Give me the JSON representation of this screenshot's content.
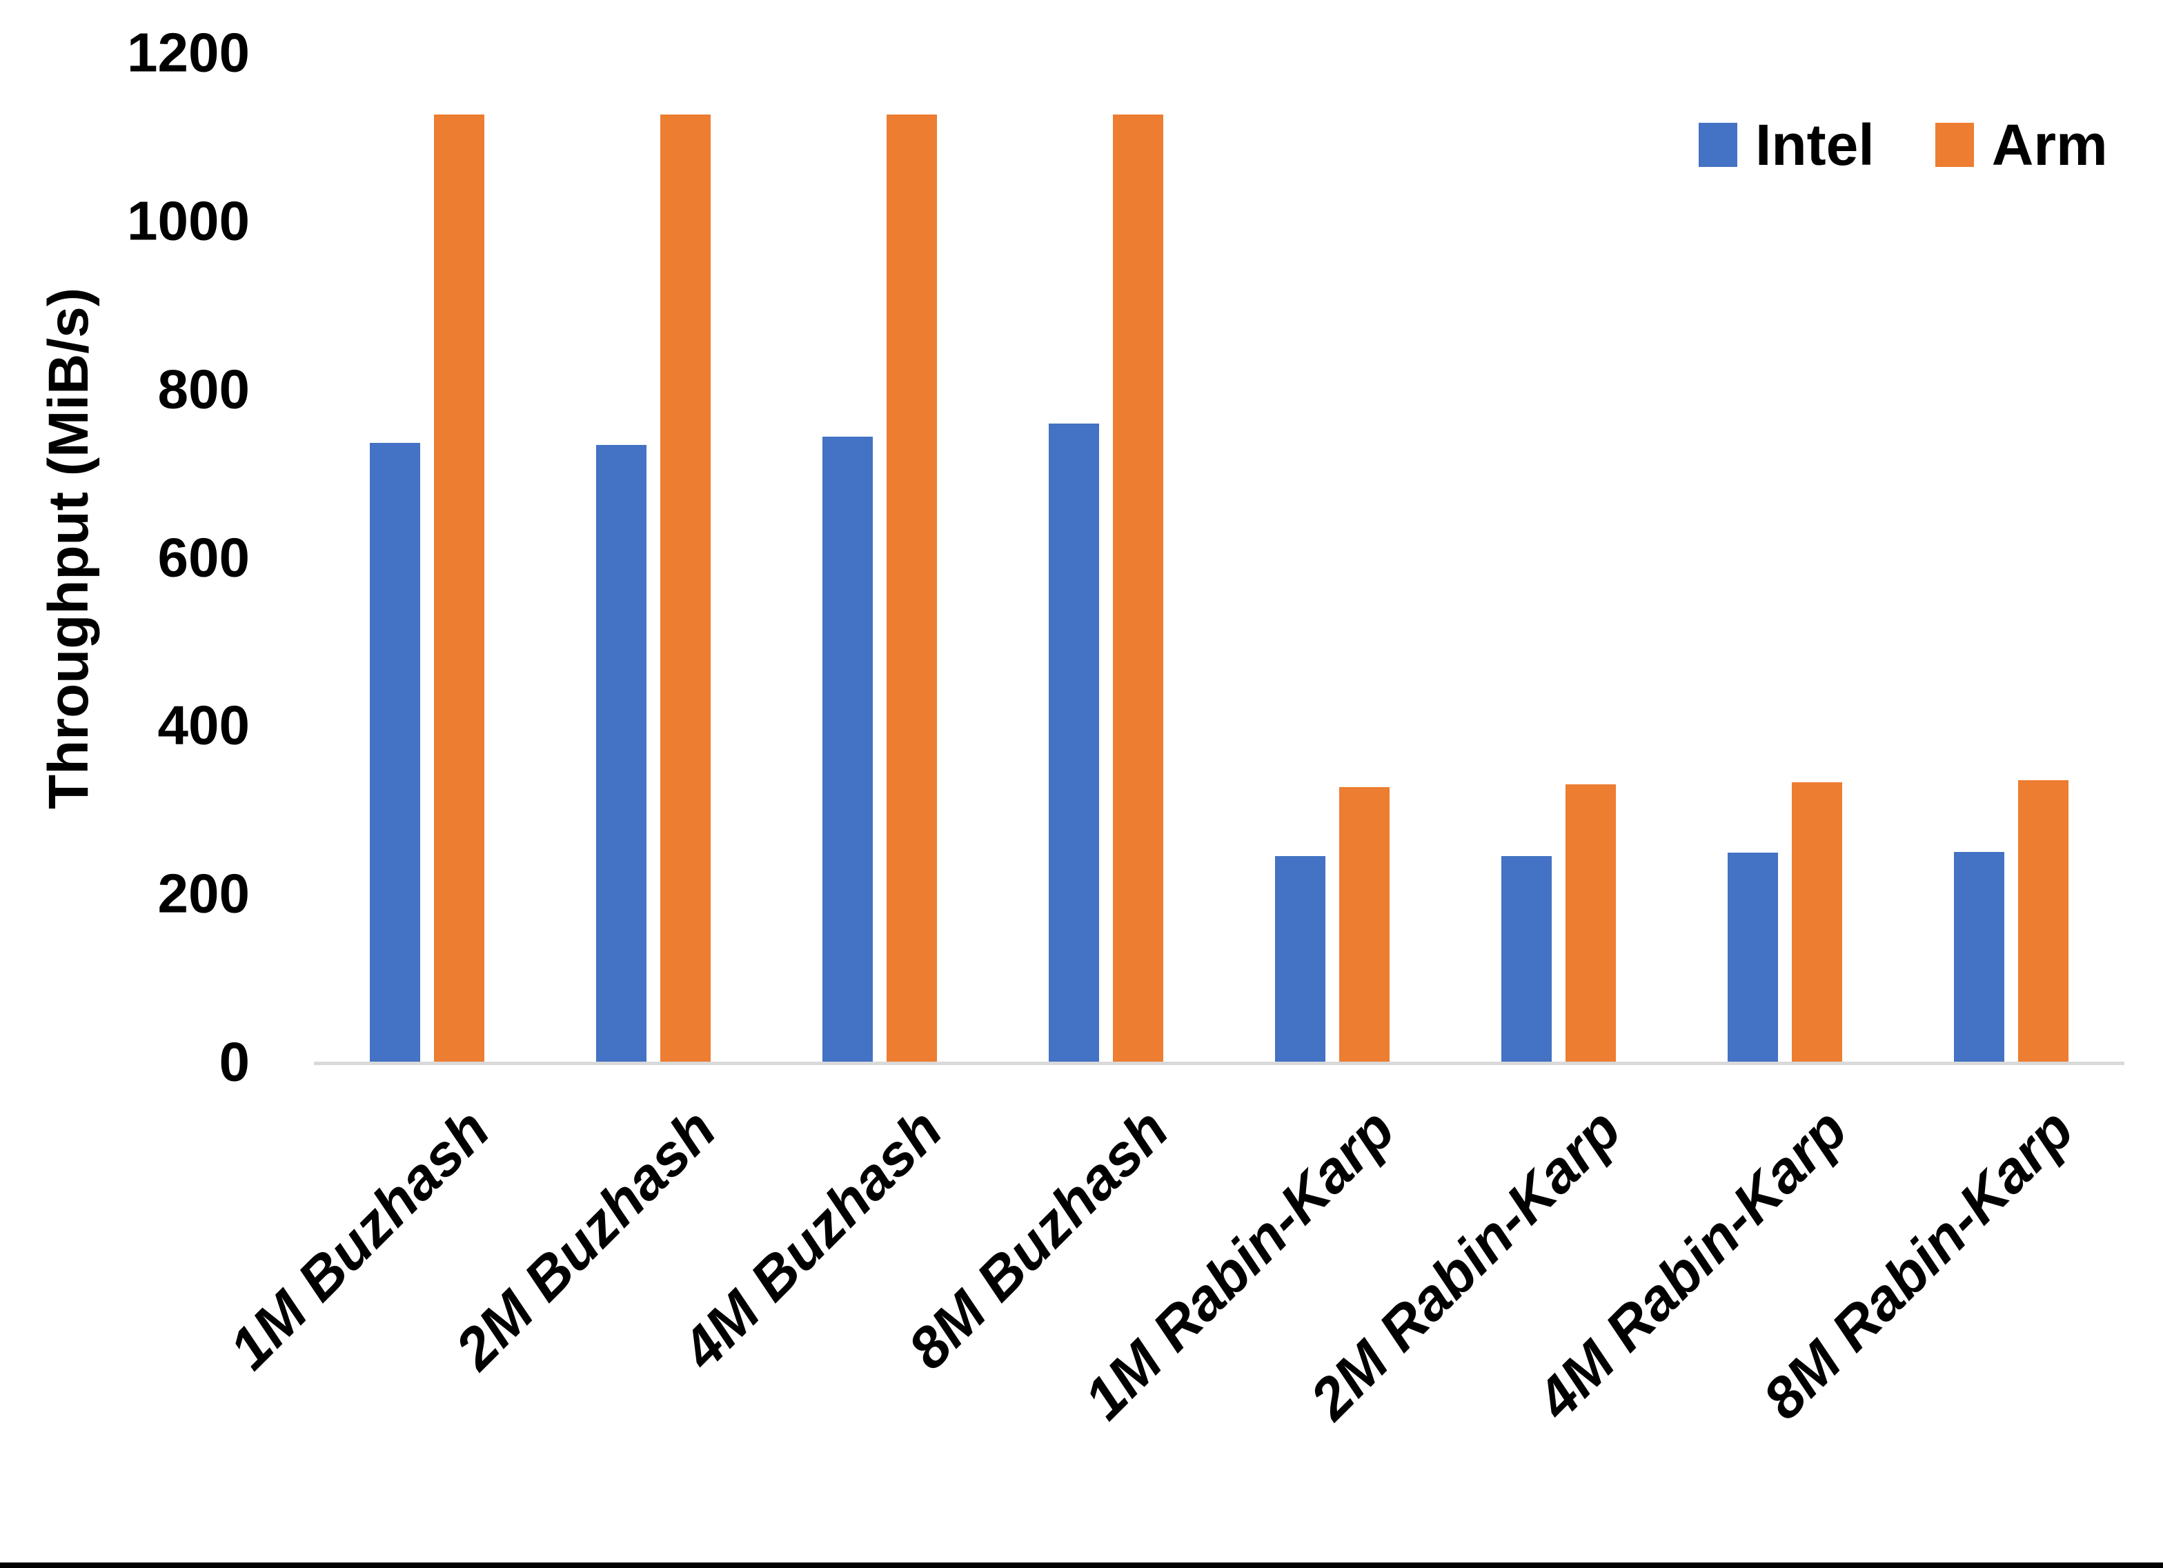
{
  "chart_data": {
    "type": "bar",
    "title": "",
    "categories": [
      "1M Buzhash",
      "2M Buzhash",
      "4M Buzhash",
      "8M Buzhash",
      "1M Rabin-Karp",
      "2M Rabin-Karp",
      "4M Rabin-Karp",
      "8M Rabin-Karp"
    ],
    "series": [
      {
        "name": "Intel",
        "color": "#4472C4",
        "values": [
          737,
          735,
          745,
          760,
          246,
          246,
          250,
          251
        ]
      },
      {
        "name": "Arm",
        "color": "#ED7D31",
        "values": [
          1128,
          1128,
          1128,
          1128,
          328,
          331,
          334,
          336
        ]
      }
    ],
    "xlabel": "",
    "ylabel": "Throughput (MiB/s)",
    "ylim": [
      0,
      1200
    ],
    "yticks": [
      0,
      200,
      400,
      600,
      800,
      1000,
      1200
    ],
    "grid": false,
    "legend_position": "top-right",
    "legend_labels": [
      "Intel",
      "Arm"
    ]
  },
  "frame": {
    "background_color": "#FFFFFF",
    "axis_line_color": "#D9D9D9",
    "text_color": "#000000",
    "bottom_border_color": "#000000"
  }
}
